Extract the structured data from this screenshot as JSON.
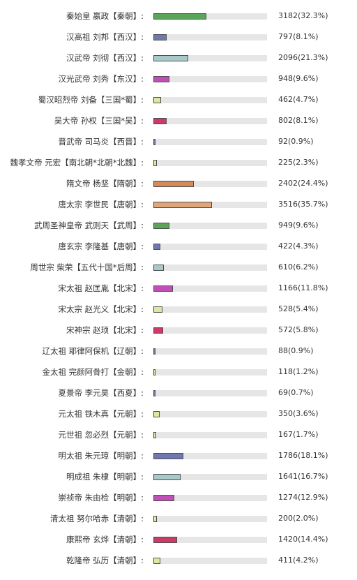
{
  "chart_data": {
    "type": "bar",
    "categories": [
      "秦始皇 嬴政【秦朝】:",
      "汉高祖 刘邦【西汉】:",
      "汉武帝 刘彻【西汉】:",
      "汉光武帝 刘秀【东汉】:",
      "蜀汉昭烈帝 刘备【三国*蜀】:",
      "吴大帝 孙权【三国*吴】:",
      "晋武帝 司马炎【西晋】:",
      "魏孝文帝 元宏【南北朝*北朝*北魏】:",
      "隋文帝 杨坚【隋朝】:",
      "唐太宗 李世民【唐朝】:",
      "武周圣神皇帝 武则天【武周】:",
      "唐玄宗 李隆基【唐朝】:",
      "周世宗 柴荣【五代十国*后周】:",
      "宋太祖 赵匡胤【北宋】:",
      "宋太宗 赵光义【北宋】:",
      "宋神宗 赵顼【北宋】:",
      "辽太祖 耶律阿保机【辽朝】:",
      "金太祖 完颜阿骨打【金朝】:",
      "夏景帝 李元昊【西夏】:",
      "元太祖 铁木真【元朝】:",
      "元世祖 忽必烈【元朝】:",
      "明太祖 朱元璋【明朝】:",
      "明成祖 朱棣【明朝】:",
      "崇祯帝 朱由检【明朝】:",
      "清太祖 努尔哈赤【清朝】:",
      "康熙帝 玄烨【清朝】:",
      "乾隆帝 弘历【清朝】:"
    ],
    "values": [
      3182,
      797,
      2096,
      948,
      462,
      802,
      92,
      225,
      2402,
      3516,
      949,
      422,
      610,
      1166,
      528,
      572,
      88,
      118,
      69,
      350,
      167,
      1786,
      1641,
      1274,
      200,
      1420,
      411
    ],
    "value_labels": [
      "3182(32.3%)",
      "797(8.1%)",
      "2096(21.3%)",
      "948(9.6%)",
      "462(4.7%)",
      "802(8.1%)",
      "92(0.9%)",
      "225(2.3%)",
      "2402(24.4%)",
      "3516(35.7%)",
      "949(9.6%)",
      "422(4.3%)",
      "610(6.2%)",
      "1166(11.8%)",
      "528(5.4%)",
      "572(5.8%)",
      "88(0.9%)",
      "118(1.2%)",
      "69(0.7%)",
      "350(3.6%)",
      "167(1.7%)",
      "1786(18.1%)",
      "1641(16.7%)",
      "1274(12.9%)",
      "200(2.0%)",
      "1420(14.4%)",
      "411(4.2%)"
    ],
    "percent_scale_max": 100,
    "colors": [
      "#5aa55a",
      "#6f79b0",
      "#a9c9c9",
      "#c04fb8",
      "#e0e6a0",
      "#cc3a66",
      "#6f79b0",
      "#e0e6a0",
      "#d58a5a",
      "#e0a679",
      "#5aa55a",
      "#6f79b0",
      "#a9c9c9",
      "#c04fb8",
      "#e0e6a0",
      "#cc3a66",
      "#6f79b0",
      "#e0e6a0",
      "#6f79b0",
      "#e0e6a0",
      "#e0e6a0",
      "#6f79b0",
      "#a9c9c9",
      "#c04fb8",
      "#e0e6a0",
      "#cc3a66",
      "#e0e6a0"
    ],
    "xlabel": "",
    "ylabel": "",
    "grid": false,
    "legend": "none"
  }
}
